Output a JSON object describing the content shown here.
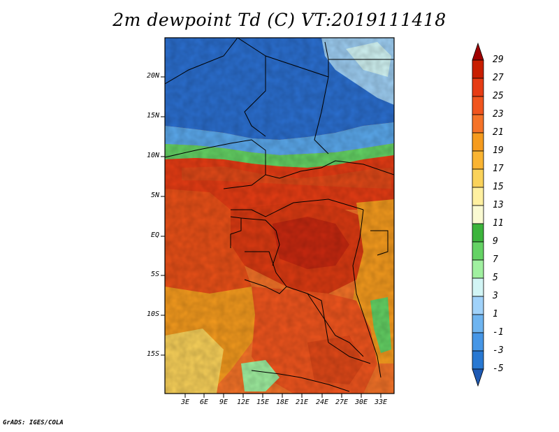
{
  "title": "2m dewpoint Td (C) VT:2019111418",
  "footer": "GrADS: IGES/COLA",
  "map": {
    "lat_labels": [
      "20N",
      "15N",
      "10N",
      "5N",
      "EQ",
      "5S",
      "10S",
      "15S"
    ],
    "lon_labels": [
      "3E",
      "6E",
      "9E",
      "12E",
      "15E",
      "18E",
      "21E",
      "24E",
      "27E",
      "30E",
      "33E"
    ]
  },
  "colorbar": {
    "labels": [
      "29",
      "27",
      "25",
      "23",
      "21",
      "19",
      "17",
      "15",
      "13",
      "11",
      "9",
      "7",
      "5",
      "3",
      "1",
      "-1",
      "-3",
      "-5"
    ],
    "colors": [
      "#a00000",
      "#c81e00",
      "#e63c14",
      "#f0551e",
      "#f57328",
      "#f59b1e",
      "#fab432",
      "#fad25a",
      "#fff0a0",
      "#fafad2",
      "#3cb43c",
      "#64d264",
      "#a0f0a0",
      "#d2f5f5",
      "#a0d2fa",
      "#6eb4f0",
      "#4696e6",
      "#2878d2",
      "#1e5ab4"
    ]
  }
}
